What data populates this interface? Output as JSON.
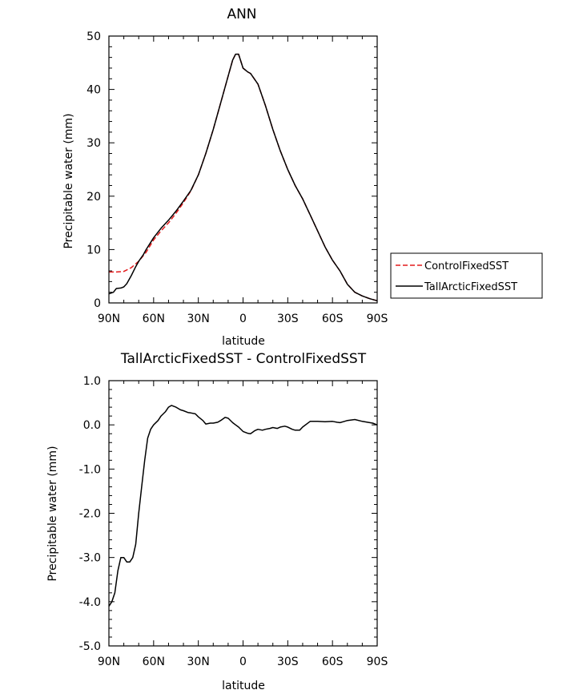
{
  "chart_data": [
    {
      "type": "line",
      "title": "ANN",
      "xlabel": "latitude",
      "ylabel": "Precipitable water (mm)",
      "xlim": [
        90,
        -90
      ],
      "ylim": [
        0,
        50
      ],
      "x_ticks": [
        90,
        60,
        30,
        0,
        -30,
        -60,
        -90
      ],
      "x_tick_labels": [
        "90N",
        "60N",
        "30N",
        "0",
        "30S",
        "60S",
        "90S"
      ],
      "y_ticks": [
        0,
        10,
        20,
        30,
        40,
        50
      ],
      "y_tick_labels": [
        "0",
        "10",
        "20",
        "30",
        "40",
        "50"
      ],
      "legend_position": "right",
      "series": [
        {
          "name": "ControlFixedSST",
          "color": "#e41a1c",
          "dash": "dashed",
          "x": [
            90,
            85,
            80,
            75,
            70,
            65,
            60,
            55,
            50,
            45,
            40,
            35,
            30,
            25,
            20,
            15,
            10,
            7,
            5,
            3,
            0,
            -3,
            -5,
            -10,
            -15,
            -20,
            -25,
            -30,
            -35,
            -40,
            -45,
            -50,
            -55,
            -60,
            -65,
            -70,
            -75,
            -80,
            -85,
            -90
          ],
          "values": [
            5.8,
            5.8,
            5.9,
            6.6,
            7.8,
            9.5,
            11.8,
            13.5,
            15.0,
            16.8,
            18.8,
            21.0,
            24.0,
            28.0,
            32.5,
            37.5,
            42.5,
            45.5,
            46.6,
            46.6,
            44.0,
            43.3,
            43.0,
            41.0,
            37.0,
            32.5,
            28.5,
            25.0,
            22.0,
            19.5,
            16.5,
            13.5,
            10.5,
            8.0,
            6.0,
            3.5,
            2.0,
            1.3,
            0.8,
            0.4
          ]
        },
        {
          "name": "TallArcticFixedSST",
          "color": "#000000",
          "dash": "solid",
          "x": [
            90,
            87,
            85,
            82,
            80,
            78,
            75,
            72,
            70,
            67,
            65,
            60,
            55,
            50,
            45,
            40,
            35,
            30,
            25,
            20,
            15,
            10,
            7,
            5,
            3,
            0,
            -3,
            -5,
            -10,
            -15,
            -20,
            -25,
            -30,
            -35,
            -40,
            -45,
            -50,
            -55,
            -60,
            -65,
            -70,
            -75,
            -80,
            -85,
            -90
          ],
          "values": [
            1.7,
            2.0,
            2.7,
            2.8,
            3.0,
            3.6,
            5.1,
            6.8,
            7.8,
            9.0,
            10.0,
            12.2,
            14.0,
            15.5,
            17.2,
            19.1,
            21.1,
            24.0,
            28.0,
            32.5,
            37.5,
            42.5,
            45.5,
            46.6,
            46.6,
            44.0,
            43.3,
            43.0,
            41.0,
            37.0,
            32.5,
            28.5,
            25.0,
            22.0,
            19.5,
            16.5,
            13.5,
            10.5,
            8.0,
            6.0,
            3.5,
            2.0,
            1.3,
            0.8,
            0.4
          ]
        }
      ]
    },
    {
      "type": "line",
      "title": "TallArcticFixedSST - ControlFixedSST",
      "xlabel": "latitude",
      "ylabel": "Precipitable water (mm)",
      "xlim": [
        90,
        -90
      ],
      "ylim": [
        -5,
        1
      ],
      "x_ticks": [
        90,
        60,
        30,
        0,
        -30,
        -60,
        -90
      ],
      "x_tick_labels": [
        "90N",
        "60N",
        "30N",
        "0",
        "30S",
        "60S",
        "90S"
      ],
      "y_ticks": [
        1,
        0,
        -1,
        -2,
        -3,
        -4,
        -5
      ],
      "y_tick_labels": [
        "1.0",
        "0.0",
        "-1.0",
        "-2.0",
        "-3.0",
        "-4.0",
        "-5.0"
      ],
      "series": [
        {
          "color": "#000000",
          "dash": "solid",
          "x": [
            90,
            88,
            86,
            84,
            82,
            80,
            78,
            76,
            74,
            72,
            70,
            68,
            66,
            64,
            62,
            60,
            57,
            55,
            52,
            50,
            48,
            45,
            42,
            40,
            37,
            35,
            32,
            30,
            27,
            25,
            22,
            20,
            17,
            15,
            12,
            10,
            7,
            5,
            3,
            0,
            -3,
            -5,
            -8,
            -10,
            -13,
            -15,
            -18,
            -20,
            -23,
            -25,
            -28,
            -30,
            -33,
            -35,
            -38,
            -40,
            -45,
            -50,
            -55,
            -60,
            -63,
            -65,
            -68,
            -70,
            -75,
            -80,
            -85,
            -87,
            -90
          ],
          "values": [
            -4.1,
            -4.0,
            -3.8,
            -3.3,
            -3.0,
            -3.0,
            -3.1,
            -3.1,
            -3.0,
            -2.7,
            -2.0,
            -1.4,
            -0.8,
            -0.3,
            -0.1,
            0.0,
            0.1,
            0.2,
            0.3,
            0.4,
            0.44,
            0.4,
            0.34,
            0.32,
            0.28,
            0.27,
            0.25,
            0.18,
            0.1,
            0.02,
            0.04,
            0.04,
            0.06,
            0.1,
            0.17,
            0.15,
            0.05,
            0.0,
            -0.05,
            -0.15,
            -0.19,
            -0.2,
            -0.13,
            -0.1,
            -0.12,
            -0.1,
            -0.08,
            -0.06,
            -0.08,
            -0.05,
            -0.03,
            -0.05,
            -0.1,
            -0.12,
            -0.12,
            -0.05,
            0.08,
            0.08,
            0.07,
            0.08,
            0.06,
            0.05,
            0.08,
            0.1,
            0.12,
            0.08,
            0.05,
            0.04,
            0.0
          ]
        }
      ]
    }
  ]
}
